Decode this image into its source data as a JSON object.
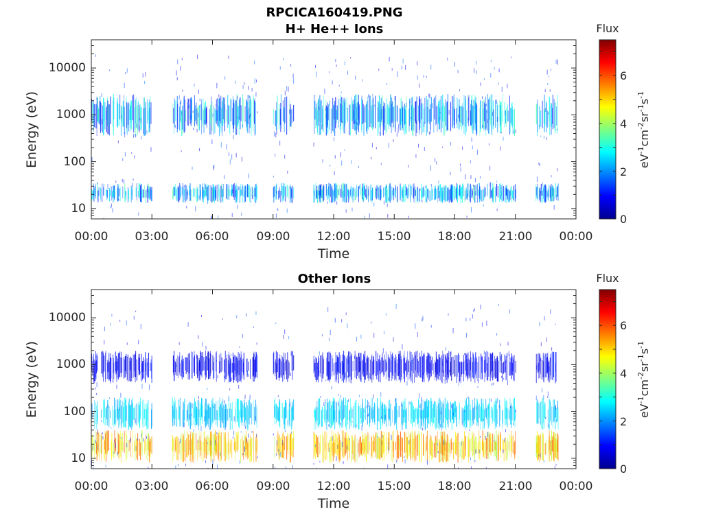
{
  "title": "RPCICA160419.PNG",
  "chart_data": [
    {
      "type": "heatmap",
      "title": "H+ He++ Ions",
      "xlabel": "Time",
      "ylabel": "Energy (eV)",
      "yscale": "log",
      "ylim": [
        6,
        40000
      ],
      "yticks": [
        "10",
        "100",
        "1000",
        "10000"
      ],
      "xlim": [
        "00:00",
        "24:00"
      ],
      "xticks": [
        "00:00",
        "03:00",
        "06:00",
        "09:00",
        "12:00",
        "15:00",
        "18:00",
        "21:00",
        "00:00"
      ],
      "colorbar": {
        "title": "Flux",
        "label": "eV-1cm-2sr-1s-1",
        "range": [
          0,
          7.5
        ],
        "ticks": [
          "0",
          "2",
          "4",
          "6"
        ],
        "colormap": "jet"
      },
      "data_intervals_hours": [
        [
          0,
          3
        ],
        [
          4,
          8.2
        ],
        [
          9,
          10
        ],
        [
          11,
          21
        ],
        [
          22,
          23.1
        ]
      ],
      "bands": [
        {
          "energy_eV": [
            350,
            2800
          ],
          "flux": [
            0.8,
            3.5
          ]
        },
        {
          "energy_eV": [
            13,
            35
          ],
          "flux": [
            0.8,
            3.5
          ]
        }
      ]
    },
    {
      "type": "heatmap",
      "title": "Other Ions",
      "xlabel": "Time",
      "ylabel": "Energy (eV)",
      "yscale": "log",
      "ylim": [
        6,
        40000
      ],
      "yticks": [
        "10",
        "100",
        "1000",
        "10000"
      ],
      "xlim": [
        "00:00",
        "24:00"
      ],
      "xticks": [
        "00:00",
        "03:00",
        "06:00",
        "09:00",
        "12:00",
        "15:00",
        "18:00",
        "21:00",
        "00:00"
      ],
      "colorbar": {
        "title": "Flux",
        "label": "eV-1cm-2sr-1s-1",
        "range": [
          0,
          7.5
        ],
        "ticks": [
          "0",
          "2",
          "4",
          "6"
        ],
        "colormap": "jet"
      },
      "data_intervals_hours": [
        [
          0,
          3
        ],
        [
          4,
          8.2
        ],
        [
          9,
          10
        ],
        [
          11,
          21
        ],
        [
          22,
          23.1
        ]
      ],
      "bands": [
        {
          "energy_eV": [
            8,
            40
          ],
          "flux": [
            4.0,
            6.0
          ]
        },
        {
          "energy_eV": [
            40,
            200
          ],
          "flux": [
            2.0,
            3.0
          ]
        },
        {
          "energy_eV": [
            400,
            2000
          ],
          "flux": [
            0.5,
            1.2
          ]
        }
      ]
    }
  ]
}
